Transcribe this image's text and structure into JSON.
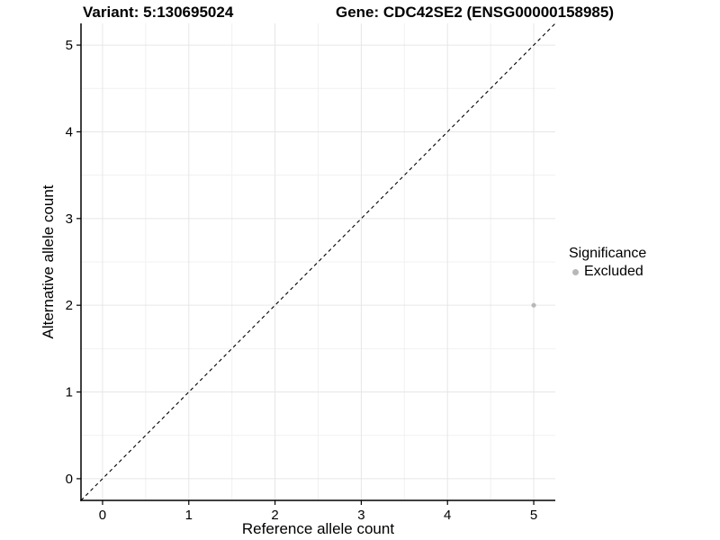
{
  "chart_data": {
    "type": "scatter",
    "titles": [
      "Variant: 5:130695024",
      "Gene: CDC42SE2 (ENSG00000158985)"
    ],
    "xlabel": "Reference allele count",
    "ylabel": "Alternative allele count",
    "xlim": [
      -0.25,
      5.25
    ],
    "ylim": [
      -0.25,
      5.25
    ],
    "x_ticks": [
      0,
      1,
      2,
      3,
      4,
      5
    ],
    "y_ticks": [
      0,
      1,
      2,
      3,
      4,
      5
    ],
    "x_minor_ticks": [
      0.5,
      1.5,
      2.5,
      3.5,
      4.5
    ],
    "y_minor_ticks": [
      0.5,
      1.5,
      2.5,
      3.5,
      4.5
    ],
    "grid": true,
    "identity_line": {
      "slope": 1,
      "intercept": 0,
      "style": "dashed"
    },
    "series": [
      {
        "name": "Excluded",
        "points": [
          {
            "x": 5,
            "y": 2
          }
        ]
      }
    ],
    "legend": {
      "position": "right",
      "title": "Significance",
      "items": [
        {
          "label": "Excluded",
          "color": "#b8b8b8",
          "marker": "circle"
        }
      ]
    }
  },
  "colors": {
    "background": "#ffffff",
    "grid_major": "#e6e6e6",
    "grid_minor": "#f1f1f1",
    "axis_line": "#000000",
    "tick_mark": "#000000",
    "tick_label": "#000000",
    "identity_line": "#000000",
    "point": "#b8b8b8",
    "text": "#000000"
  }
}
